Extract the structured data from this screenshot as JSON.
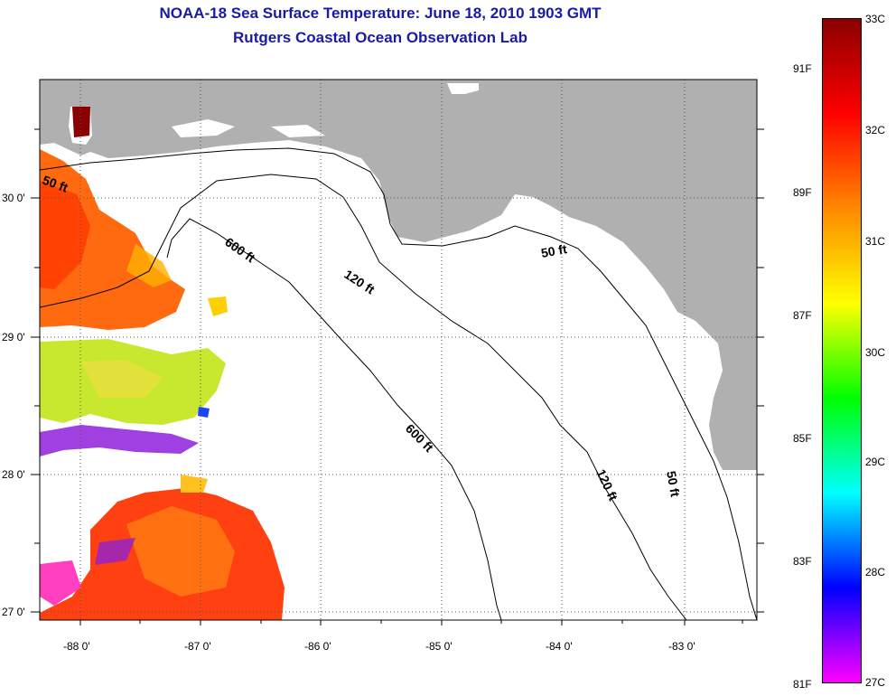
{
  "title": {
    "line1": "NOAA-18 Sea Surface Temperature:  June 18, 2010 1903 GMT",
    "line2": "Rutgers Coastal Ocean Observation Lab"
  },
  "map": {
    "lon_labels": [
      "-88 0'",
      "-87 0'",
      "-86 0'",
      "-85 0'",
      "-84 0'",
      "-83 0'"
    ],
    "lat_labels": [
      "30 0'",
      "29 0'",
      "28 0'",
      "27 0'"
    ],
    "land_color": "#b0b0b0",
    "contour_labels": {
      "c50_west": "50 ft",
      "c600_north": "600 ft",
      "c120": "120 ft",
      "c50_mid": "50 ft",
      "c600_south": "600 ft",
      "c120_south": "120 ft",
      "c50_south": "50 ft"
    }
  },
  "colorbar": {
    "celsius": [
      "33C",
      "32C",
      "31C",
      "30C",
      "29C",
      "28C",
      "27C"
    ],
    "fahrenheit": [
      "91F",
      "89F",
      "87F",
      "85F",
      "83F",
      "81F"
    ],
    "colors": [
      "#8b0000",
      "#ff0000",
      "#ff8800",
      "#ffff00",
      "#00ff00",
      "#00ffff",
      "#0000ff",
      "#ff00ff"
    ]
  }
}
